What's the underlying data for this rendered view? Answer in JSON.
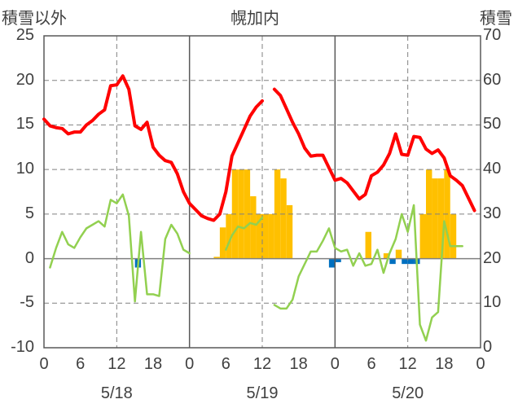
{
  "chart_data": {
    "type": "bar+line",
    "title": "幌加内",
    "left_axis_label": "積雪以外",
    "right_axis_label": "積雪",
    "left_ylim": [
      -10,
      25
    ],
    "left_yticks": [
      25,
      20,
      15,
      10,
      5,
      0,
      -5,
      -10
    ],
    "right_ylim": [
      0,
      70
    ],
    "right_yticks": [
      70,
      60,
      50,
      40,
      30,
      20,
      10,
      0
    ],
    "x_range_hours": [
      0,
      72
    ],
    "x_tick_labels": [
      "0",
      "6",
      "12",
      "18",
      "0",
      "6",
      "12",
      "18",
      "0",
      "6",
      "12",
      "18",
      "0"
    ],
    "date_labels": [
      {
        "hour": 12,
        "label": "5/18"
      },
      {
        "hour": 36,
        "label": "5/19"
      },
      {
        "hour": 60,
        "label": "5/20"
      }
    ],
    "grid": true,
    "colors": {
      "snow_depth": "#ff0000",
      "temperature": "#92d050",
      "snowfall_positive": "#ffc000",
      "snowfall_negative": "#0070c0",
      "axis_text": "#404040",
      "grid": "#808080"
    },
    "series": [
      {
        "role": "snow_depth",
        "axis": "right",
        "style": "line",
        "points": [
          [
            0,
            51.3
          ],
          [
            1,
            49.8
          ],
          [
            2,
            49.4
          ],
          [
            3,
            49.2
          ],
          [
            4,
            48.0
          ],
          [
            5,
            48.4
          ],
          [
            6,
            48.4
          ],
          [
            7,
            50.0
          ],
          [
            8,
            51.0
          ],
          [
            9,
            52.4
          ],
          [
            10,
            53.4
          ],
          [
            11,
            58.8
          ],
          [
            12,
            59.0
          ],
          [
            13,
            61.0
          ],
          [
            14,
            58.0
          ],
          [
            15,
            49.8
          ],
          [
            16,
            49.0
          ],
          [
            17,
            50.6
          ],
          [
            18,
            45.0
          ],
          [
            19,
            43.2
          ],
          [
            20,
            42.0
          ],
          [
            21,
            41.6
          ],
          [
            22,
            39.0
          ],
          [
            23,
            35.0
          ],
          [
            24,
            32.4
          ],
          [
            25,
            31.0
          ],
          [
            26,
            29.6
          ],
          [
            27,
            29.0
          ],
          [
            28,
            28.6
          ],
          [
            29,
            30.0
          ],
          [
            30,
            35.0
          ],
          [
            31,
            43.0
          ],
          [
            32,
            46.0
          ],
          [
            33,
            49.0
          ],
          [
            34,
            52.0
          ],
          [
            35,
            54.0
          ],
          [
            36,
            55.4
          ],
          [
            38,
            58.0
          ],
          [
            39,
            56.6
          ],
          [
            40,
            53.6
          ],
          [
            41,
            50.6
          ],
          [
            42,
            48.0
          ],
          [
            43,
            44.8
          ],
          [
            44,
            43.0
          ],
          [
            45,
            43.2
          ],
          [
            46,
            43.2
          ],
          [
            47,
            40.4
          ],
          [
            48,
            37.6
          ],
          [
            49,
            38.0
          ],
          [
            50,
            37.0
          ],
          [
            51,
            35.2
          ],
          [
            52,
            33.4
          ],
          [
            53,
            34.4
          ],
          [
            54,
            38.6
          ],
          [
            55,
            39.4
          ],
          [
            56,
            41.0
          ],
          [
            57,
            43.6
          ],
          [
            58,
            48.0
          ],
          [
            59,
            43.4
          ],
          [
            60,
            43.2
          ],
          [
            61,
            47.4
          ],
          [
            62,
            47.2
          ],
          [
            63,
            44.6
          ],
          [
            64,
            43.6
          ],
          [
            65,
            44.4
          ],
          [
            66,
            42.6
          ],
          [
            67,
            38.6
          ],
          [
            68,
            37.6
          ],
          [
            69,
            36.4
          ],
          [
            70,
            33.6
          ],
          [
            71,
            30.8
          ]
        ]
      },
      {
        "role": "temperature",
        "axis": "left",
        "style": "line",
        "points": [
          [
            1,
            -1.0
          ],
          [
            2,
            1.2
          ],
          [
            3,
            3.0
          ],
          [
            4,
            1.6
          ],
          [
            5,
            1.2
          ],
          [
            6,
            2.4
          ],
          [
            7,
            3.4
          ],
          [
            8,
            3.8
          ],
          [
            9,
            4.2
          ],
          [
            10,
            3.6
          ],
          [
            11,
            6.6
          ],
          [
            12,
            6.2
          ],
          [
            13,
            7.2
          ],
          [
            14,
            4.8
          ],
          [
            15,
            -4.8
          ],
          [
            16,
            3.0
          ],
          [
            17,
            -4.0
          ],
          [
            18,
            -4.0
          ],
          [
            19,
            -4.2
          ],
          [
            20,
            2.2
          ],
          [
            21,
            3.8
          ],
          [
            22,
            2.8
          ],
          [
            23,
            1.0
          ],
          [
            24,
            0.6
          ],
          [
            30,
            1.0
          ],
          [
            31,
            2.6
          ],
          [
            32,
            3.6
          ],
          [
            33,
            3.4
          ],
          [
            34,
            4.0
          ],
          [
            35,
            3.8
          ],
          [
            36,
            4.6
          ],
          [
            38,
            -5.2
          ],
          [
            39,
            -5.6
          ],
          [
            40,
            -5.6
          ],
          [
            41,
            -4.6
          ],
          [
            42,
            -2.0
          ],
          [
            43,
            -0.6
          ],
          [
            44,
            0.8
          ],
          [
            45,
            0.8
          ],
          [
            46,
            2.0
          ],
          [
            47,
            3.4
          ],
          [
            48,
            1.2
          ],
          [
            49,
            0.8
          ],
          [
            50,
            1.0
          ],
          [
            51,
            -0.8
          ],
          [
            52,
            0.6
          ],
          [
            53,
            -0.8
          ],
          [
            54,
            -0.6
          ],
          [
            55,
            1.0
          ],
          [
            56,
            -1.6
          ],
          [
            57,
            0.6
          ],
          [
            58,
            2.2
          ],
          [
            59,
            5.0
          ],
          [
            60,
            3.0
          ],
          [
            61,
            6.0
          ],
          [
            62,
            -7.4
          ],
          [
            63,
            -9.2
          ],
          [
            64,
            -6.6
          ],
          [
            65,
            -6.0
          ],
          [
            66,
            4.2
          ],
          [
            67,
            1.4
          ],
          [
            68,
            1.4
          ],
          [
            69,
            1.4
          ]
        ]
      },
      {
        "role": "snowfall",
        "axis": "left",
        "style": "bar",
        "bars": [
          [
            16,
            -1.0
          ],
          [
            29,
            0.2
          ],
          [
            30,
            3.5
          ],
          [
            31,
            5.0
          ],
          [
            32,
            10.0
          ],
          [
            33,
            10.0
          ],
          [
            34,
            10.0
          ],
          [
            35,
            7.0
          ],
          [
            36,
            5.0
          ],
          [
            37,
            5.0
          ],
          [
            38,
            5.0
          ],
          [
            39,
            10.0
          ],
          [
            40,
            9.0
          ],
          [
            41,
            6.0
          ],
          [
            48,
            -1.0
          ],
          [
            49,
            -0.4
          ],
          [
            54,
            3.0
          ],
          [
            57,
            0.6
          ],
          [
            58,
            -0.6
          ],
          [
            59,
            1.0
          ],
          [
            60,
            -0.6
          ],
          [
            61,
            -0.6
          ],
          [
            62,
            -0.6
          ],
          [
            63,
            5.0
          ],
          [
            64,
            10.0
          ],
          [
            65,
            9.0
          ],
          [
            66,
            9.0
          ],
          [
            67,
            10.0
          ],
          [
            68,
            5.0
          ]
        ]
      }
    ]
  }
}
